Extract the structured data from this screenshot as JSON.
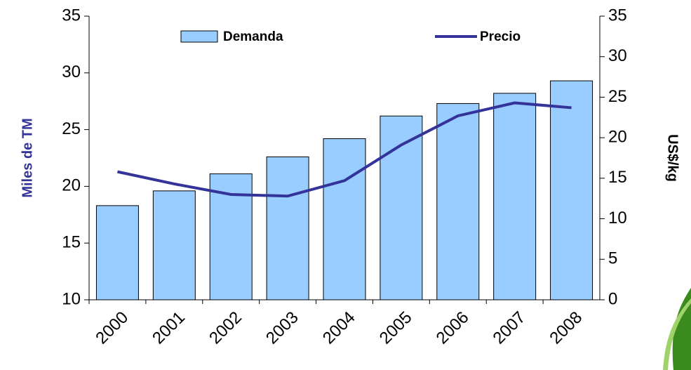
{
  "chart_data": {
    "type": "bar",
    "categories": [
      "2000",
      "2001",
      "2002",
      "2003",
      "2004",
      "2005",
      "2006",
      "2007",
      "2008"
    ],
    "series": [
      {
        "name": "Demanda",
        "type": "bar",
        "color": "#99ccff",
        "values": [
          18.3,
          19.6,
          21.1,
          22.6,
          24.2,
          26.2,
          27.3,
          28.2,
          29.3
        ]
      },
      {
        "name": "Precio",
        "type": "line",
        "axis": "y2",
        "color": "#333399",
        "values": [
          15.8,
          14.3,
          13.0,
          12.8,
          14.7,
          19.1,
          22.7,
          24.3,
          23.7
        ]
      }
    ],
    "ylabel": "Miles de TM",
    "y2label": "US$/kg",
    "ylim": [
      10,
      35
    ],
    "yticks": [
      10,
      15,
      20,
      25,
      30,
      35
    ],
    "y2lim": [
      0,
      35
    ],
    "y2ticks": [
      0,
      5,
      10,
      15,
      20,
      25,
      30,
      35
    ]
  }
}
